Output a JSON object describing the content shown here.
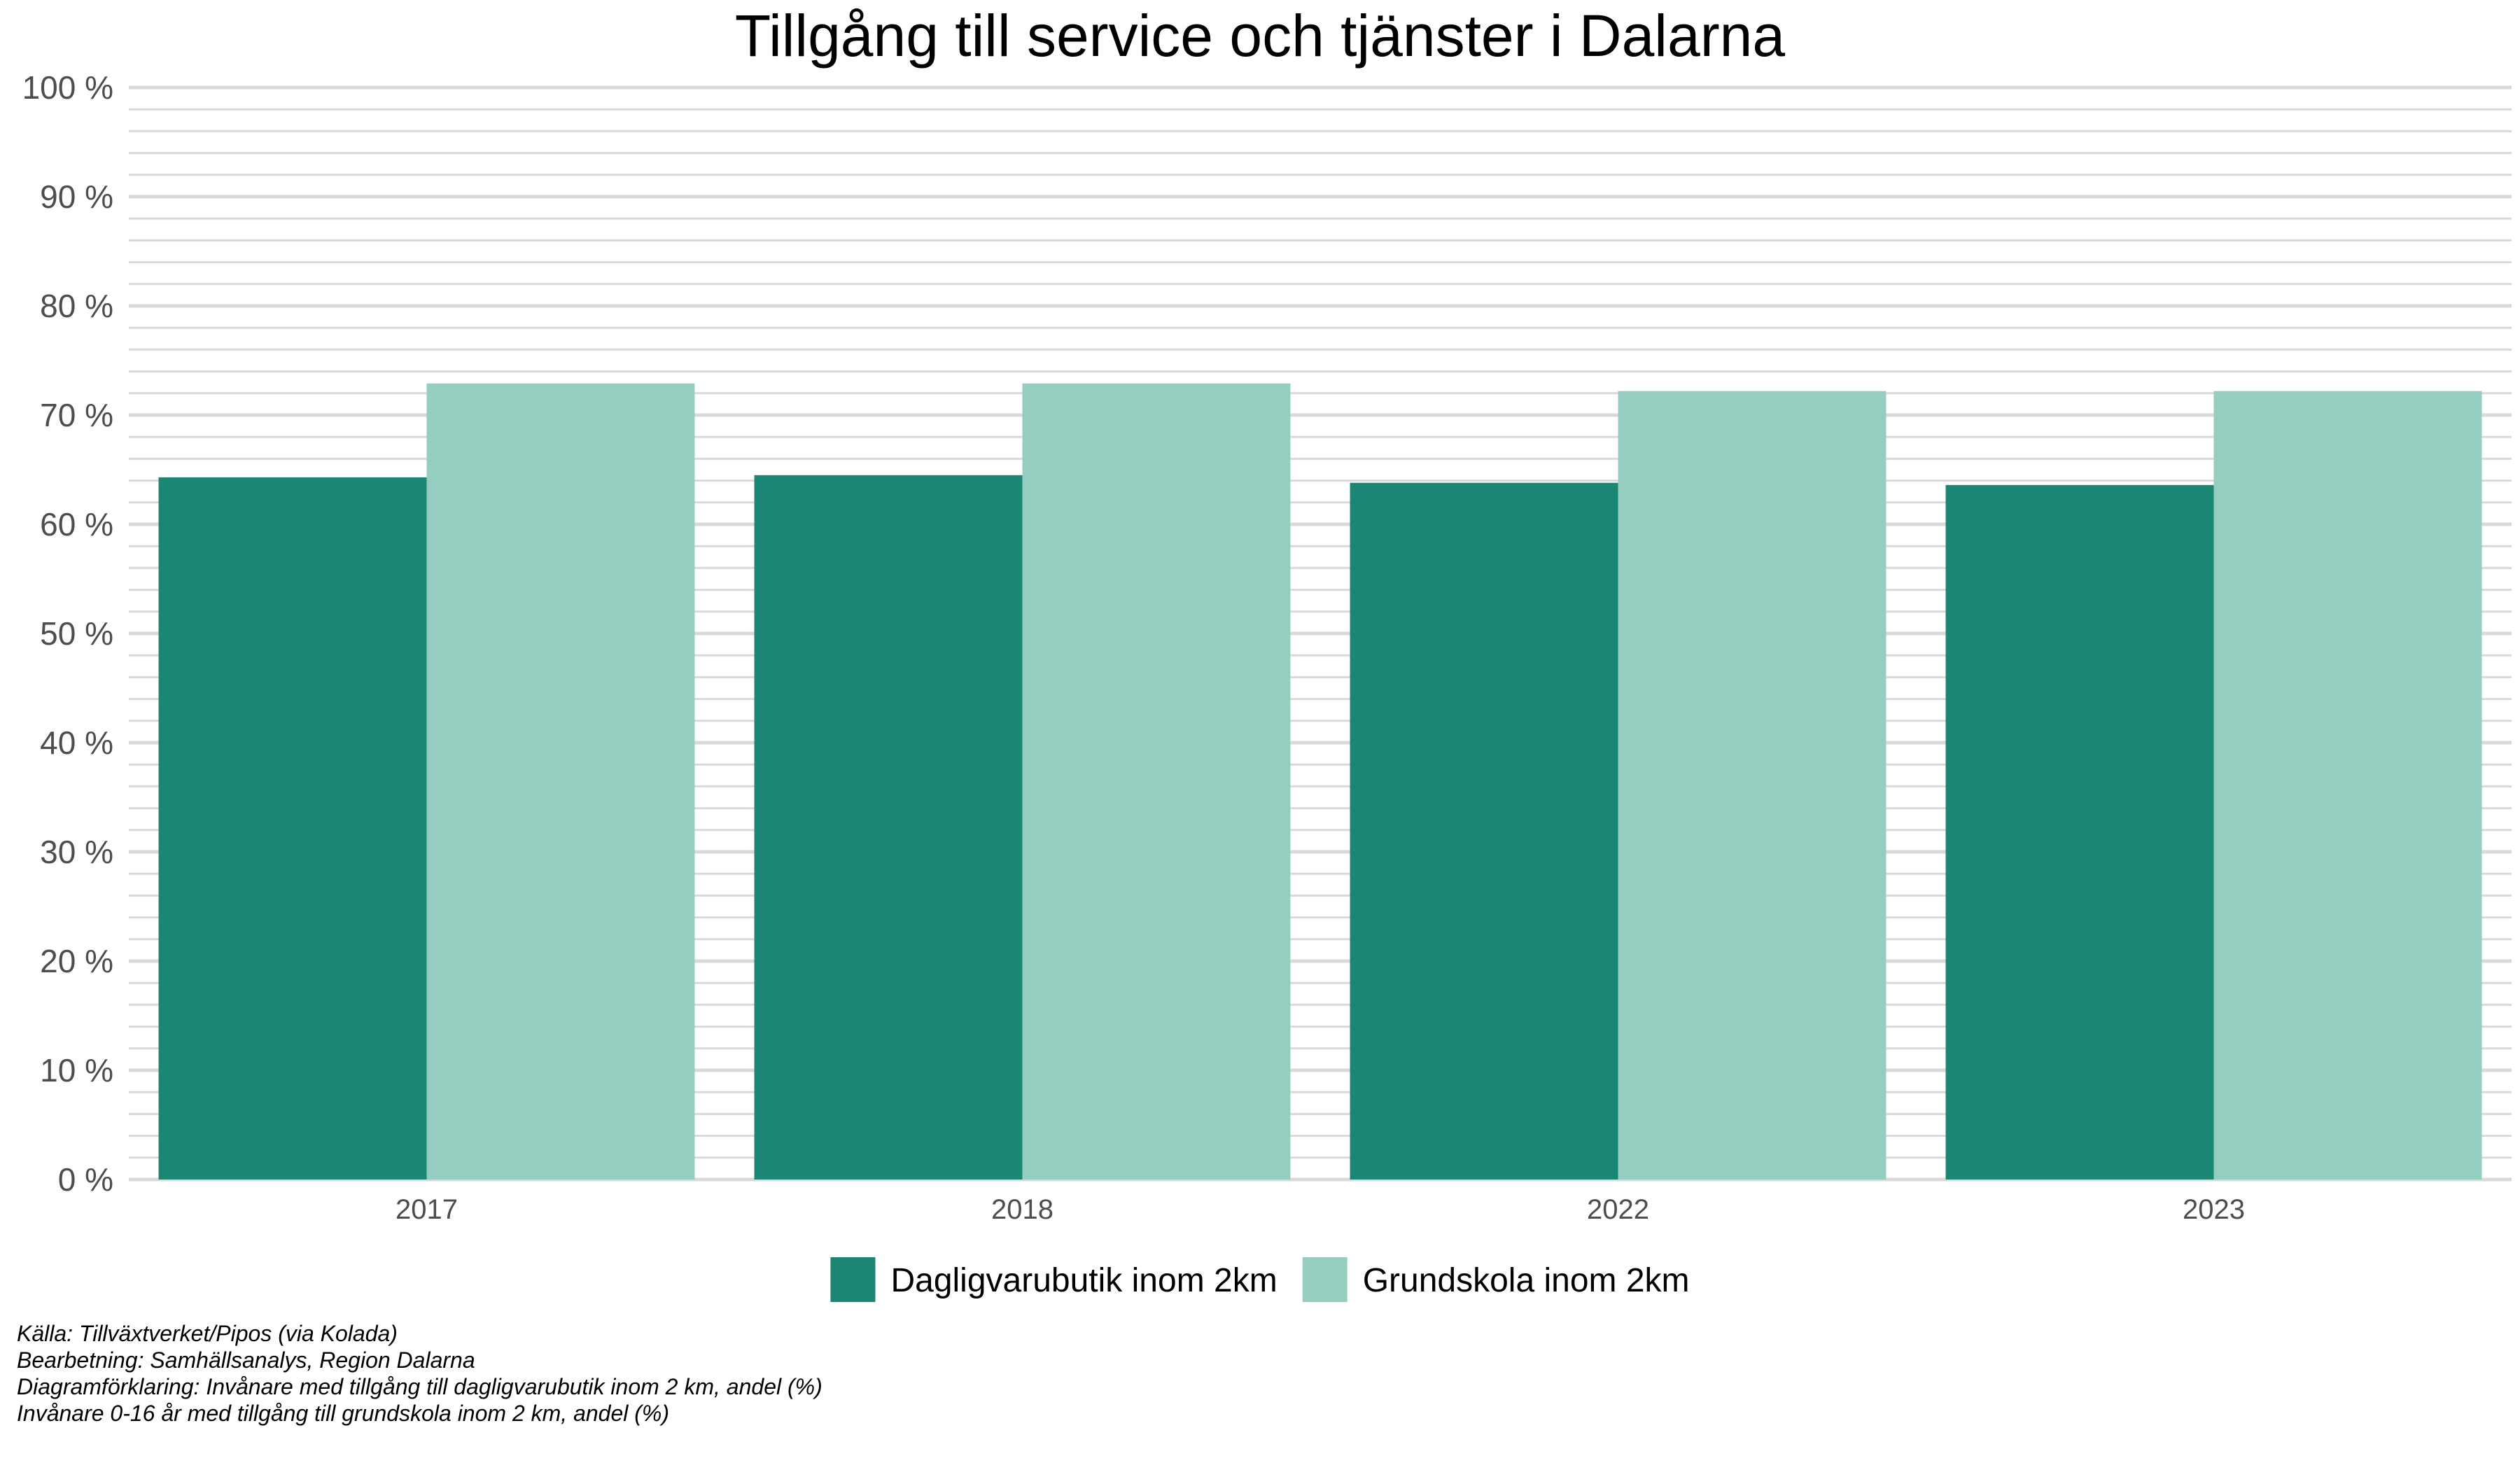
{
  "chart_data": {
    "type": "bar",
    "title": "Tillgång till service och tjänster i Dalarna",
    "categories": [
      "2017",
      "2018",
      "2022",
      "2023"
    ],
    "series": [
      {
        "name": "Dagligvarubutik inom 2km",
        "color": "#1a8673",
        "values": [
          64.3,
          64.5,
          63.8,
          63.6
        ]
      },
      {
        "name": "Grundskola inom 2km",
        "color": "#95cec0",
        "values": [
          72.9,
          72.9,
          72.2,
          72.2
        ]
      }
    ],
    "ylim": [
      0,
      100
    ],
    "yticks": [
      0,
      10,
      20,
      30,
      40,
      50,
      60,
      70,
      80,
      90,
      100
    ],
    "ytick_labels": [
      "0 %",
      "10 %",
      "20 %",
      "30 %",
      "40 %",
      "50 %",
      "60 %",
      "70 %",
      "80 %",
      "90 %",
      "100 %"
    ],
    "minor_grid_step": 2,
    "grid": true,
    "legend_position": "bottom",
    "grid_color": "#d9d9d9"
  },
  "caption": {
    "source": "Källa:  Tillväxtverket/Pipos (via Kolada)",
    "processing": "Bearbetning: Samhällsanalys, Region Dalarna",
    "explanation": "Diagramförklaring: Invånare med tillgång till dagligvarubutik inom 2 km, andel (%)",
    "explanation2": "Invånare 0-16 år med tillgång till grundskola inom 2 km, andel (%)"
  }
}
